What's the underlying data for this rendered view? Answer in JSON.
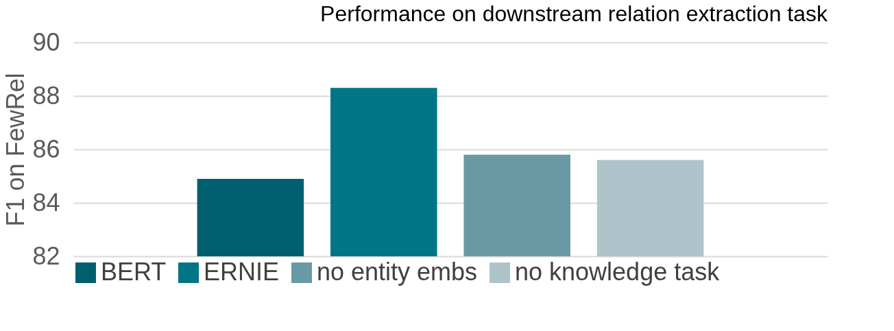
{
  "chart_data": {
    "type": "bar",
    "title": "Performance on downstream relation extraction task",
    "ylabel": "F1 on FewRel",
    "categories": [
      null
    ],
    "series": [
      {
        "name": "BERT",
        "color": "#005f6e",
        "values": [
          84.9
        ]
      },
      {
        "name": "ERNIE",
        "color": "#007585",
        "values": [
          88.3
        ]
      },
      {
        "name": "no entity embs",
        "color": "#6a99a6",
        "values": [
          85.8
        ]
      },
      {
        "name": "no knowledge task",
        "color": "#afc3ca",
        "values": [
          85.6
        ]
      }
    ],
    "ylim": [
      82,
      90
    ],
    "yticks": [
      82,
      84,
      86,
      88,
      90
    ],
    "grid": "y",
    "legend": "bottom"
  }
}
